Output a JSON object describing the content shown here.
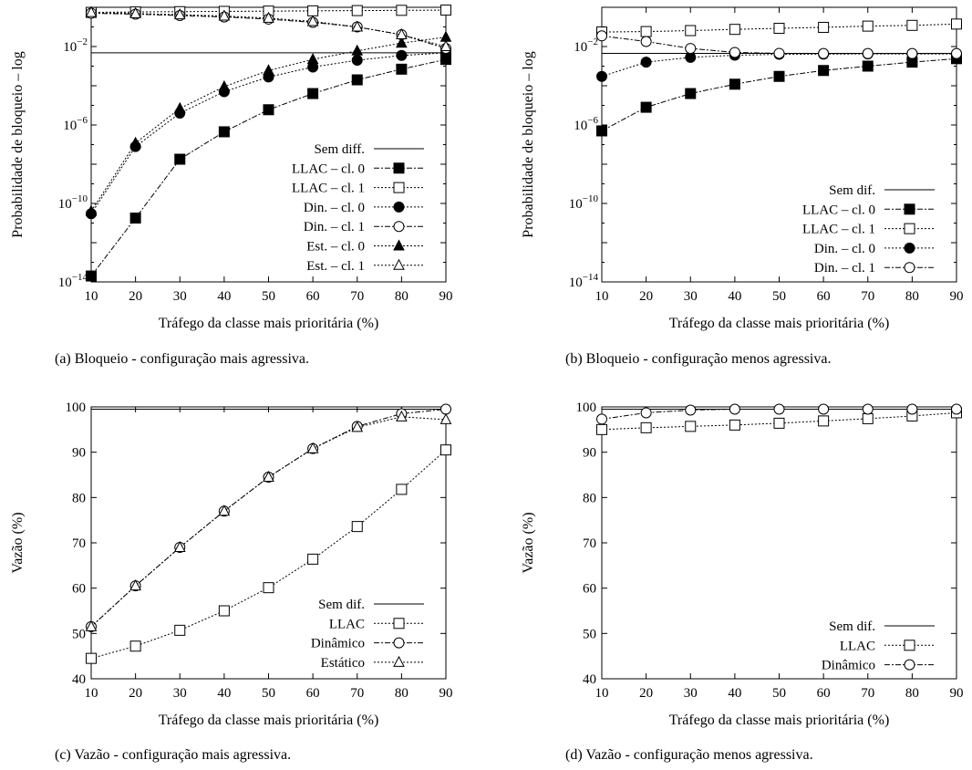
{
  "chart_data": [
    {
      "type": "line",
      "caption": "(a)  Bloqueio - configuração mais agressiva.",
      "xlabel": "Tráfego da classe mais prioritária (%)",
      "ylabel": "Probabilidade de bloqueio – log",
      "yscale": "log",
      "xlim": [
        10,
        90
      ],
      "ylim": [
        1e-14,
        1
      ],
      "xticks": [
        10,
        20,
        30,
        40,
        50,
        60,
        70,
        80,
        90
      ],
      "yticks": [
        {
          "value": 1e-14,
          "base": "10",
          "exp": "−14"
        },
        {
          "value": 1e-10,
          "base": "10",
          "exp": "−10"
        },
        {
          "value": 1e-06,
          "base": "10",
          "exp": "−6"
        },
        {
          "value": 0.01,
          "base": "10",
          "exp": "−2"
        }
      ],
      "legend_position": "bottom-right",
      "x": [
        10,
        20,
        30,
        40,
        50,
        60,
        70,
        80,
        90
      ],
      "series": [
        {
          "name": "Sem diff.",
          "marker": "none",
          "dash": "",
          "values": [
            0.0048,
            0.0048,
            0.0048,
            0.0048,
            0.0048,
            0.0048,
            0.0048,
            0.0048,
            0.0048
          ]
        },
        {
          "name": "LLAC – cl. 0",
          "marker": "square-filled",
          "dash": "6,2,2,2",
          "values": [
            2e-14,
            1.8e-11,
            1.8e-08,
            4.5e-07,
            6e-06,
            4e-05,
            0.0002,
            0.0007,
            0.0022
          ]
        },
        {
          "name": "LLAC – cl. 1",
          "marker": "square-open",
          "dash": "2,2",
          "values": [
            0.55,
            0.58,
            0.6,
            0.62,
            0.64,
            0.66,
            0.68,
            0.7,
            0.72
          ]
        },
        {
          "name": "Din. – cl. 0",
          "marker": "circle-filled",
          "dash": "2,2",
          "values": [
            3e-11,
            8e-08,
            4e-06,
            5e-05,
            0.00028,
            0.0009,
            0.002,
            0.0035,
            0.0048
          ]
        },
        {
          "name": "Din. – cl. 1",
          "marker": "circle-open",
          "dash": "6,2,2,2",
          "values": [
            0.5,
            0.45,
            0.38,
            0.32,
            0.25,
            0.17,
            0.1,
            0.04,
            0.008
          ]
        },
        {
          "name": "Est. – cl. 0",
          "marker": "triangle-filled",
          "dash": "2,2",
          "values": [
            4e-11,
            1.2e-07,
            7e-06,
            9e-05,
            0.0006,
            0.0022,
            0.006,
            0.015,
            0.03
          ]
        },
        {
          "name": "Est. – cl. 1",
          "marker": "triangle-open",
          "dash": "2,2",
          "values": [
            0.55,
            0.48,
            0.42,
            0.36,
            0.28,
            0.19,
            0.1,
            0.04,
            0.01
          ]
        }
      ]
    },
    {
      "type": "line",
      "caption": "(b)  Bloqueio - configuração menos agressiva.",
      "xlabel": "Tráfego da classe mais prioritária (%)",
      "ylabel": "Probabilidade de bloqueio – log",
      "yscale": "log",
      "xlim": [
        10,
        90
      ],
      "ylim": [
        1e-14,
        1
      ],
      "xticks": [
        10,
        20,
        30,
        40,
        50,
        60,
        70,
        80,
        90
      ],
      "yticks": [
        {
          "value": 1e-14,
          "base": "10",
          "exp": "−14"
        },
        {
          "value": 1e-10,
          "base": "10",
          "exp": "−10"
        },
        {
          "value": 1e-06,
          "base": "10",
          "exp": "−6"
        },
        {
          "value": 0.01,
          "base": "10",
          "exp": "−2"
        }
      ],
      "legend_position": "bottom-right",
      "x": [
        10,
        20,
        30,
        40,
        50,
        60,
        70,
        80,
        90
      ],
      "series": [
        {
          "name": "Sem dif.",
          "marker": "none",
          "dash": "",
          "values": [
            0.0045,
            0.0045,
            0.0045,
            0.0045,
            0.0045,
            0.0045,
            0.0045,
            0.0045,
            0.0045
          ]
        },
        {
          "name": "LLAC – cl. 0",
          "marker": "square-filled",
          "dash": "6,2,2,2",
          "values": [
            5e-07,
            8e-06,
            4e-05,
            0.00012,
            0.0003,
            0.0006,
            0.001,
            0.0016,
            0.0024
          ]
        },
        {
          "name": "LLAC – cl. 1",
          "marker": "square-open",
          "dash": "2,2",
          "values": [
            0.055,
            0.058,
            0.065,
            0.075,
            0.085,
            0.095,
            0.11,
            0.12,
            0.14
          ]
        },
        {
          "name": "Din. – cl. 0",
          "marker": "circle-filled",
          "dash": "2,2",
          "values": [
            0.0003,
            0.0016,
            0.0028,
            0.0036,
            0.004,
            0.0041,
            0.0042,
            0.0042,
            0.0042
          ]
        },
        {
          "name": "Din. – cl. 1",
          "marker": "circle-open",
          "dash": "6,2,2,2",
          "values": [
            0.035,
            0.018,
            0.008,
            0.005,
            0.0045,
            0.0044,
            0.0044,
            0.0044,
            0.0044
          ]
        }
      ]
    },
    {
      "type": "line",
      "caption": "(c)  Vazão - configuração mais agressiva.",
      "xlabel": "Tráfego da classe mais prioritária (%)",
      "ylabel": "Vazão (%)",
      "yscale": "linear",
      "xlim": [
        10,
        90
      ],
      "ylim": [
        40,
        100
      ],
      "xticks": [
        10,
        20,
        30,
        40,
        50,
        60,
        70,
        80,
        90
      ],
      "yticks": [
        40,
        50,
        60,
        70,
        80,
        90,
        100
      ],
      "legend_position": "bottom-right",
      "x": [
        10,
        20,
        30,
        40,
        50,
        60,
        70,
        80,
        90
      ],
      "series": [
        {
          "name": "Sem dif.",
          "marker": "none",
          "dash": "",
          "values": [
            99.5,
            99.5,
            99.5,
            99.5,
            99.5,
            99.5,
            99.5,
            99.5,
            99.5
          ]
        },
        {
          "name": "LLAC",
          "marker": "square-open",
          "dash": "2,2",
          "values": [
            44.5,
            47.2,
            50.7,
            55,
            60.1,
            66.4,
            73.6,
            81.8,
            90.5
          ]
        },
        {
          "name": "Dinâmico",
          "marker": "circle-open",
          "dash": "6,2,2,2",
          "values": [
            51.5,
            60.5,
            69,
            77,
            84.5,
            90.8,
            95.7,
            98.5,
            99.5
          ]
        },
        {
          "name": "Estático",
          "marker": "triangle-open",
          "dash": "2,2",
          "values": [
            51.5,
            60.5,
            69,
            77,
            84.5,
            90.8,
            95.5,
            97.8,
            97.2
          ]
        }
      ]
    },
    {
      "type": "line",
      "caption": "(d)  Vazão - configuração menos agressiva.",
      "xlabel": "Tráfego da classe mais prioritária (%)",
      "ylabel": "Vazão (%)",
      "yscale": "linear",
      "xlim": [
        10,
        90
      ],
      "ylim": [
        40,
        100
      ],
      "xticks": [
        10,
        20,
        30,
        40,
        50,
        60,
        70,
        80,
        90
      ],
      "yticks": [
        40,
        50,
        60,
        70,
        80,
        90,
        100
      ],
      "legend_position": "bottom-right",
      "x": [
        10,
        20,
        30,
        40,
        50,
        60,
        70,
        80,
        90
      ],
      "series": [
        {
          "name": "Sem dif.",
          "marker": "none",
          "dash": "",
          "values": [
            99.5,
            99.5,
            99.5,
            99.5,
            99.5,
            99.5,
            99.5,
            99.5,
            99.5
          ]
        },
        {
          "name": "LLAC",
          "marker": "square-open",
          "dash": "2,2",
          "values": [
            95,
            95.4,
            95.7,
            96,
            96.4,
            96.9,
            97.4,
            98,
            98.7
          ]
        },
        {
          "name": "Dinâmico",
          "marker": "circle-open",
          "dash": "6,2,2,2",
          "values": [
            97.3,
            98.7,
            99.3,
            99.5,
            99.5,
            99.5,
            99.5,
            99.5,
            99.5
          ]
        }
      ]
    }
  ]
}
